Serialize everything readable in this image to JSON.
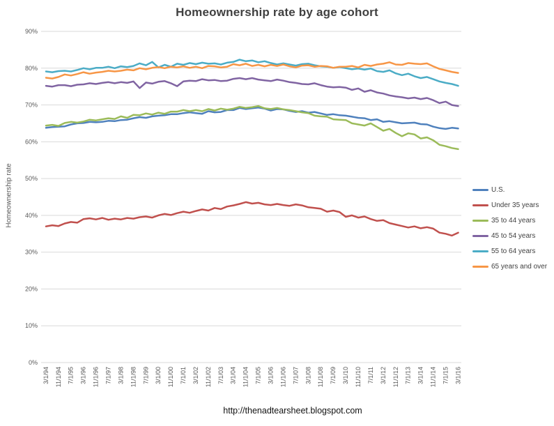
{
  "title": "Homeownership rate by age cohort",
  "footer_url": "http://thenadtearsheet.blogspot.com",
  "chart_data": {
    "type": "line",
    "title": "Homeownership rate by age cohort",
    "xlabel": "",
    "ylabel": "Homeownership rate",
    "ylim": [
      0,
      90
    ],
    "ytick_step": 10,
    "ytick_suffix": "%",
    "grid": true,
    "legend_position": "right",
    "label_every": 2,
    "x_labels": [
      "3/1/94",
      "11/1/94",
      "7/1/95",
      "3/1/96",
      "11/1/96",
      "7/1/97",
      "3/1/98",
      "11/1/98",
      "7/1/99",
      "3/1/00",
      "11/1/00",
      "7/1/01",
      "3/1/02",
      "11/1/02",
      "7/1/03",
      "3/1/04",
      "11/1/04",
      "7/1/05",
      "3/1/06",
      "11/1/06",
      "7/1/07",
      "3/1/08",
      "11/1/08",
      "7/1/09",
      "3/1/10",
      "11/1/10",
      "7/1/11",
      "3/1/12",
      "11/1/12",
      "7/1/13",
      "3/1/14",
      "11/1/14",
      "7/1/15",
      "3/1/16"
    ],
    "series": [
      {
        "name": "U.S.",
        "color": "#4F81BD",
        "values": [
          63.8,
          64.0,
          64.1,
          64.2,
          64.7,
          65.0,
          65.1,
          65.4,
          65.3,
          65.4,
          65.7,
          65.6,
          65.9,
          66.0,
          66.4,
          66.7,
          66.5,
          66.9,
          67.1,
          67.2,
          67.5,
          67.5,
          67.8,
          68.0,
          67.8,
          67.6,
          68.3,
          68.0,
          68.1,
          68.6,
          68.6,
          69.2,
          68.9,
          69.1,
          69.3,
          69.0,
          68.5,
          68.9,
          68.8,
          68.4,
          68.1,
          68.3,
          67.9,
          68.1,
          67.7,
          67.3,
          67.5,
          67.2,
          67.1,
          66.8,
          66.5,
          66.4,
          65.9,
          66.1,
          65.4,
          65.6,
          65.3,
          65.0,
          65.1,
          65.2,
          64.8,
          64.7,
          64.1,
          63.7,
          63.5,
          63.8,
          63.6
        ]
      },
      {
        "name": "Under 35 years",
        "color": "#C0504D",
        "values": [
          37.0,
          37.3,
          37.1,
          37.8,
          38.2,
          38.0,
          39.0,
          39.2,
          38.9,
          39.3,
          38.8,
          39.1,
          38.9,
          39.3,
          39.1,
          39.5,
          39.7,
          39.4,
          40.0,
          40.4,
          40.1,
          40.6,
          41.0,
          40.7,
          41.2,
          41.6,
          41.3,
          42.0,
          41.7,
          42.4,
          42.7,
          43.1,
          43.6,
          43.2,
          43.4,
          43.0,
          42.8,
          43.1,
          42.8,
          42.6,
          43.0,
          42.7,
          42.2,
          42.0,
          41.8,
          41.0,
          41.3,
          40.9,
          39.6,
          40.0,
          39.4,
          39.7,
          39.0,
          38.5,
          38.7,
          37.9,
          37.5,
          37.1,
          36.7,
          37.0,
          36.5,
          36.8,
          36.4,
          35.3,
          35.0,
          34.5,
          35.3
        ]
      },
      {
        "name": "35 to 44 years",
        "color": "#9BBB59",
        "values": [
          64.4,
          64.6,
          64.3,
          65.1,
          65.4,
          65.2,
          65.5,
          66.0,
          65.8,
          66.1,
          66.4,
          66.2,
          66.9,
          66.5,
          67.3,
          67.2,
          67.7,
          67.4,
          67.9,
          67.6,
          68.2,
          68.2,
          68.6,
          68.3,
          68.6,
          68.3,
          68.9,
          68.5,
          69.0,
          68.7,
          69.0,
          69.5,
          69.2,
          69.4,
          69.7,
          69.1,
          68.9,
          69.2,
          68.8,
          68.6,
          68.3,
          68.0,
          67.8,
          67.1,
          66.9,
          66.8,
          66.1,
          66.0,
          65.9,
          65.0,
          64.7,
          64.4,
          65.0,
          64.0,
          63.0,
          63.5,
          62.4,
          61.5,
          62.3,
          62.0,
          60.9,
          61.2,
          60.4,
          59.2,
          58.8,
          58.3,
          58.0
        ]
      },
      {
        "name": "45 to 54 years",
        "color": "#8064A2",
        "values": [
          75.2,
          75.0,
          75.4,
          75.4,
          75.1,
          75.5,
          75.6,
          75.9,
          75.7,
          76.0,
          76.2,
          75.9,
          76.2,
          76.0,
          76.4,
          74.6,
          76.1,
          75.8,
          76.3,
          76.5,
          75.9,
          75.1,
          76.4,
          76.6,
          76.5,
          77.0,
          76.7,
          76.8,
          76.5,
          76.6,
          77.1,
          77.3,
          77.0,
          77.3,
          76.9,
          76.7,
          76.5,
          76.9,
          76.6,
          76.2,
          76.0,
          75.7,
          75.6,
          75.9,
          75.4,
          75.0,
          74.8,
          74.9,
          74.7,
          74.1,
          74.5,
          73.6,
          74.0,
          73.4,
          73.1,
          72.6,
          72.3,
          72.1,
          71.8,
          72.0,
          71.6,
          71.9,
          71.3,
          70.5,
          70.9,
          70.0,
          69.7
        ]
      },
      {
        "name": "55 to 64 years",
        "color": "#4BACC6",
        "values": [
          79.1,
          78.9,
          79.2,
          79.3,
          79.1,
          79.5,
          80.0,
          79.7,
          80.1,
          80.1,
          80.4,
          80.0,
          80.5,
          80.3,
          80.6,
          81.3,
          80.8,
          81.7,
          80.2,
          80.9,
          80.4,
          81.2,
          80.9,
          81.4,
          81.1,
          81.5,
          81.2,
          81.3,
          81.0,
          81.5,
          81.7,
          82.3,
          81.9,
          82.1,
          81.6,
          81.9,
          81.4,
          81.0,
          81.3,
          81.0,
          80.7,
          81.1,
          81.2,
          80.8,
          80.5,
          80.4,
          80.1,
          80.3,
          80.0,
          79.7,
          79.9,
          79.6,
          79.9,
          79.2,
          79.0,
          79.4,
          78.6,
          78.1,
          78.5,
          77.8,
          77.3,
          77.6,
          77.0,
          76.4,
          76.0,
          75.7,
          75.2
        ]
      },
      {
        "name": "65 years and over",
        "color": "#F79646",
        "values": [
          77.4,
          77.2,
          77.6,
          78.3,
          78.0,
          78.4,
          78.9,
          78.5,
          78.8,
          79.0,
          79.3,
          79.1,
          79.3,
          79.6,
          79.4,
          80.0,
          79.7,
          80.1,
          80.3,
          80.0,
          80.4,
          80.2,
          80.5,
          80.1,
          80.4,
          80.0,
          80.6,
          80.5,
          80.2,
          80.4,
          81.1,
          80.8,
          81.2,
          80.6,
          80.9,
          80.5,
          80.9,
          80.6,
          81.0,
          80.5,
          80.2,
          80.7,
          80.8,
          80.4,
          80.6,
          80.5,
          80.1,
          80.4,
          80.4,
          80.6,
          80.2,
          80.9,
          80.6,
          81.0,
          81.2,
          81.6,
          81.0,
          80.9,
          81.4,
          81.2,
          81.1,
          81.3,
          80.5,
          79.8,
          79.4,
          79.0,
          78.7
        ]
      }
    ]
  }
}
